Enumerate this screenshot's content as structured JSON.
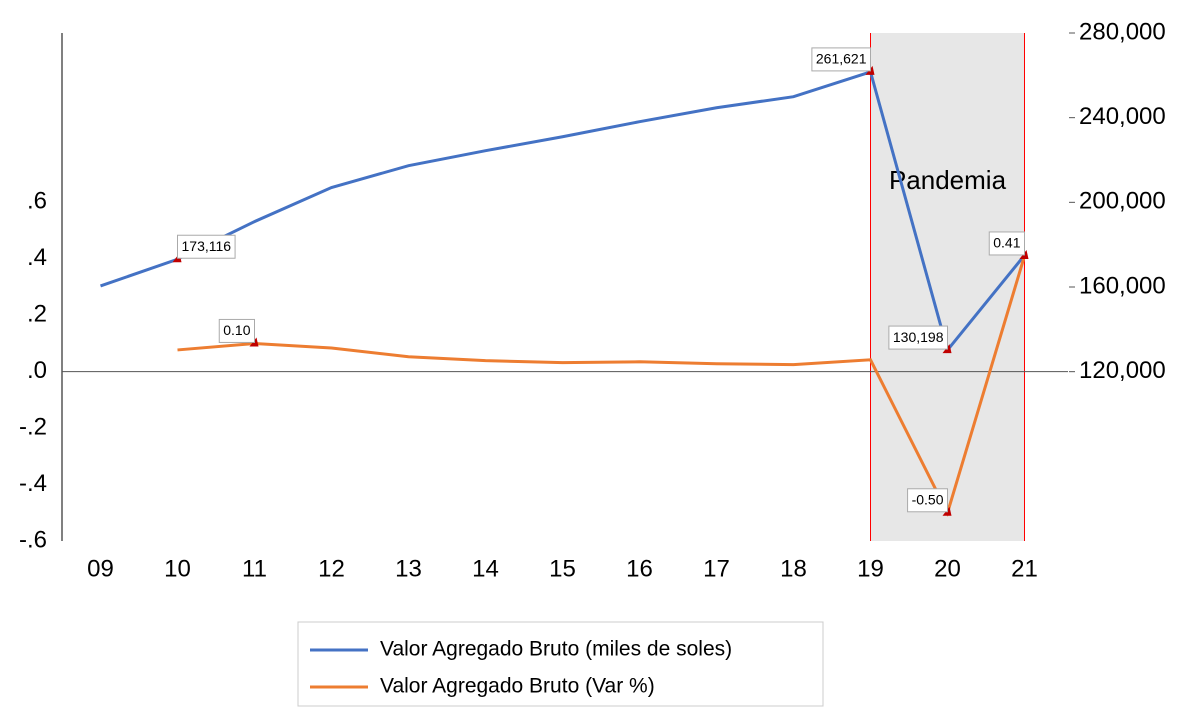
{
  "chart_data": {
    "type": "line",
    "categories": [
      "09",
      "10",
      "11",
      "12",
      "13",
      "14",
      "15",
      "16",
      "17",
      "18",
      "19",
      "20",
      "21"
    ],
    "series": [
      {
        "name": "Valor Agregado Bruto (miles de soles)",
        "color": "#4472c4",
        "axis": "y2",
        "values": [
          160500,
          173116,
          190900,
          207000,
          217300,
          224400,
          231000,
          238100,
          244700,
          249900,
          261621,
          130198,
          175000
        ],
        "value_labels": [
          null,
          "173,116",
          null,
          null,
          null,
          null,
          null,
          null,
          null,
          null,
          "261,621",
          "130,198",
          null
        ]
      },
      {
        "name": "Valor Agregado Bruto (Var %)",
        "color": "#ed7d31",
        "values": [
          null,
          0.077,
          0.1,
          0.084,
          0.053,
          0.039,
          0.032,
          0.035,
          0.028,
          0.025,
          0.042,
          -0.5,
          0.41
        ],
        "value_labels": [
          null,
          null,
          "0.10",
          null,
          null,
          null,
          null,
          null,
          null,
          null,
          null,
          "-0.50",
          "0.41"
        ]
      }
    ],
    "ylim": [
      -0.6,
      1.2
    ],
    "yticks": [
      {
        "value": -0.6,
        "label": "-.6"
      },
      {
        "value": -0.4,
        "label": "-.4"
      },
      {
        "value": -0.2,
        "label": "-.2"
      },
      {
        "value": 0,
        "label": ".0"
      },
      {
        "value": 0.2,
        "label": ".2"
      },
      {
        "value": 0.4,
        "label": ".4"
      },
      {
        "value": 0.6,
        "label": ".6"
      }
    ],
    "y2lim": [
      40000,
      280000
    ],
    "y2ticks": [
      {
        "value": 120000,
        "label": "120,000"
      },
      {
        "value": 160000,
        "label": "160,000"
      },
      {
        "value": 200000,
        "label": "200,000"
      },
      {
        "value": 240000,
        "label": "240,000"
      },
      {
        "value": 280000,
        "label": "280,000"
      }
    ],
    "shade": {
      "label": "Pandemia",
      "from": "19",
      "to": "21",
      "color": "#e7e7e7",
      "edge_color": "#ff0000"
    },
    "zero_line": true,
    "legend": "bottom"
  }
}
